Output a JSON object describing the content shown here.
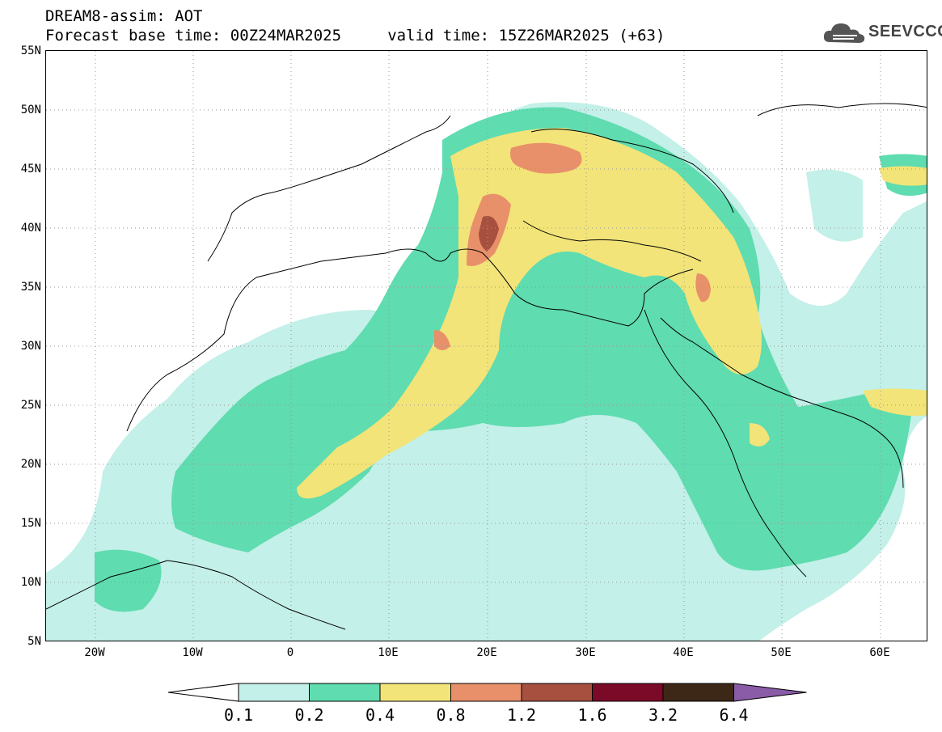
{
  "header": {
    "title_line1": "DREAM8-assim: AOT",
    "title_line2": "Forecast base time: 00Z24MAR2025     valid time: 15Z26MAR2025 (+63)",
    "logo_text": "SEEVCCC"
  },
  "map": {
    "lat_labels": [
      "55N",
      "50N",
      "45N",
      "40N",
      "35N",
      "30N",
      "25N",
      "20N",
      "15N",
      "10N",
      "5N"
    ],
    "lon_labels": [
      "20W",
      "10W",
      "0",
      "10E",
      "20E",
      "30E",
      "40E",
      "50E",
      "60E"
    ],
    "gridlines": "dotted",
    "variable": "AOT"
  },
  "colorbar": {
    "levels": [
      "0.1",
      "0.2",
      "0.4",
      "0.8",
      "1.2",
      "1.6",
      "3.2",
      "6.4"
    ],
    "colors": [
      "#ffffff",
      "#c3f0e8",
      "#5fdcb0",
      "#f2e479",
      "#e8906a",
      "#a85040",
      "#7a0a28",
      "#3d2818",
      "#8a5ca8"
    ]
  }
}
